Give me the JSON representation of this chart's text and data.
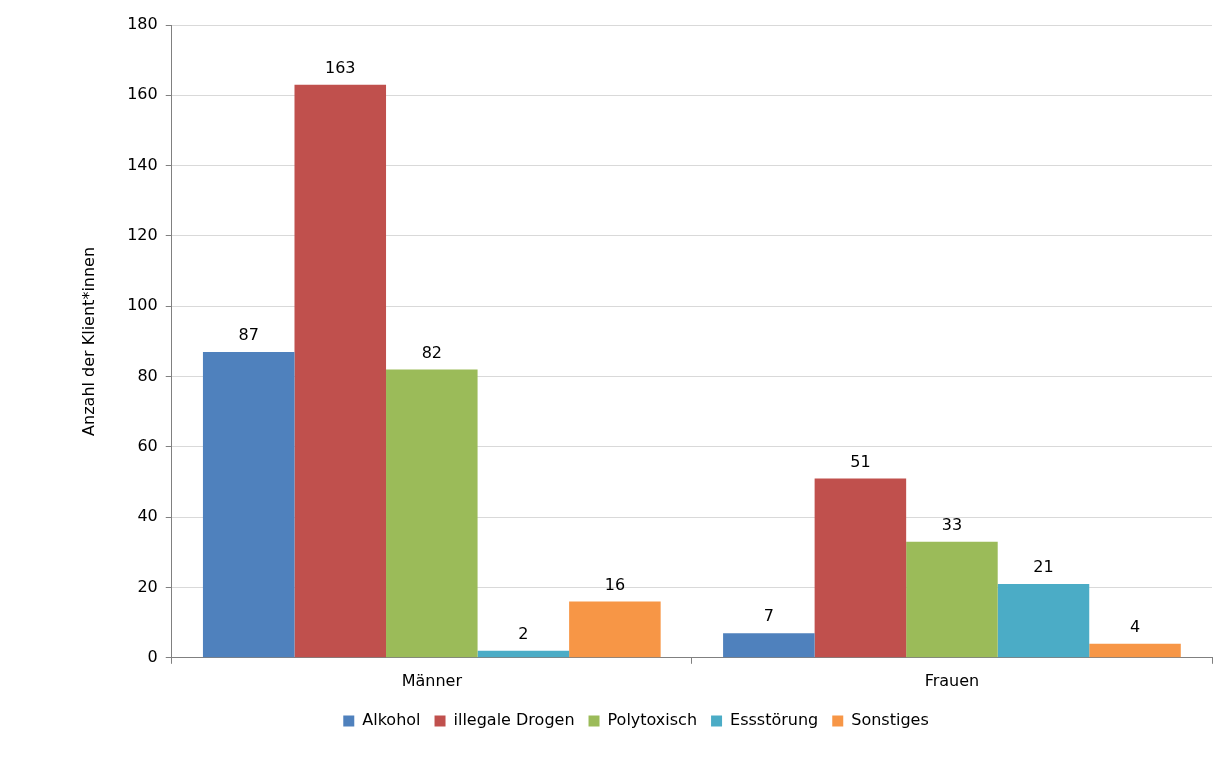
{
  "chart_data": {
    "type": "bar",
    "ylabel": "Anzahl der Klient*innen",
    "categories": [
      "Männer",
      "Frauen"
    ],
    "series": [
      {
        "name": "Alkohol",
        "color": "#4f81bd",
        "values": [
          87,
          7
        ]
      },
      {
        "name": "illegale Drogen",
        "color": "#c0504d",
        "values": [
          163,
          51
        ]
      },
      {
        "name": "Polytoxisch",
        "color": "#9bbb59",
        "values": [
          82,
          33
        ]
      },
      {
        "name": "Essstörung",
        "color": "#4bacc6",
        "values": [
          2,
          21
        ]
      },
      {
        "name": "Sonstiges",
        "color": "#f79646",
        "values": [
          16,
          4
        ]
      }
    ],
    "ylim": [
      0,
      180
    ],
    "yticks": [
      0,
      20,
      40,
      60,
      80,
      100,
      120,
      140,
      160,
      180
    ],
    "grid": "y",
    "legend": "bottom",
    "data_labels": true
  }
}
